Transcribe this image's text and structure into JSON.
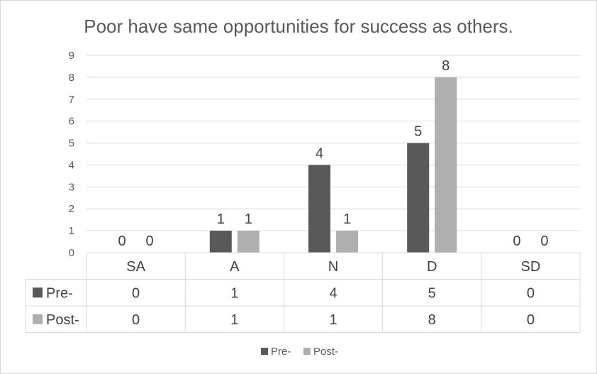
{
  "chart_data": {
    "type": "bar",
    "title": "Poor have same opportunities for success as others.",
    "categories": [
      "SA",
      "A",
      "N",
      "D",
      "SD"
    ],
    "series": [
      {
        "name": "Pre-",
        "values": [
          0,
          1,
          4,
          5,
          0
        ],
        "color": "#595959"
      },
      {
        "name": "Post-",
        "values": [
          0,
          1,
          1,
          8,
          0
        ],
        "color": "#afafaf"
      }
    ],
    "ylim": [
      0,
      9
    ],
    "yticks": [
      "0",
      "1",
      "2",
      "3",
      "4",
      "5",
      "6",
      "7",
      "8",
      "9"
    ],
    "grid": true,
    "data_table": true,
    "legend_position": "bottom"
  }
}
